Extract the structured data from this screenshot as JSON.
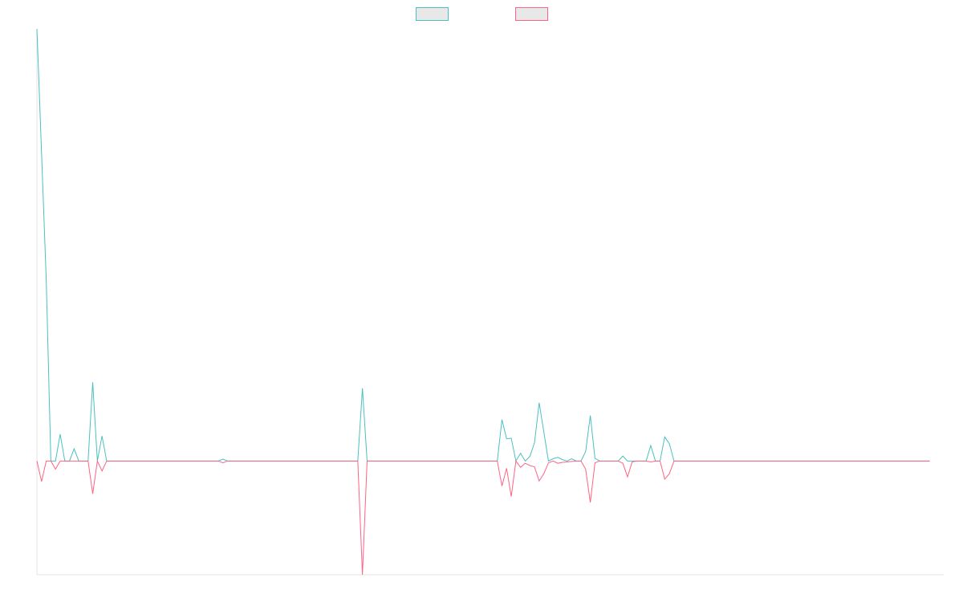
{
  "chart_data": {
    "type": "line",
    "title": "",
    "xlabel": "",
    "ylabel": "",
    "grid": false,
    "legend": "top-center",
    "x_count": 196,
    "ylim": [
      -25,
      95
    ],
    "series": [
      {
        "color": "#4bc0c0",
        "fill": "#e8e8e8",
        "values": [
          95,
          67.7,
          40,
          0,
          0,
          5.9,
          0,
          0,
          2.7,
          0,
          0,
          0,
          17.3,
          0,
          5.5,
          0,
          0,
          0,
          0,
          0,
          0,
          0,
          0,
          0,
          0,
          0,
          0,
          0,
          0,
          0,
          0,
          0,
          0,
          0,
          0,
          0,
          0,
          0,
          0,
          0,
          0.4,
          0,
          0,
          0,
          0,
          0,
          0,
          0,
          0,
          0,
          0,
          0,
          0,
          0,
          0,
          0,
          0,
          0,
          0,
          0,
          0,
          0,
          0,
          0,
          0,
          0,
          0,
          0,
          0,
          0,
          16,
          0,
          0,
          0,
          0,
          0,
          0,
          0,
          0,
          0,
          0,
          0,
          0,
          0,
          0,
          0,
          0,
          0,
          0,
          0,
          0,
          0,
          0,
          0,
          0,
          0,
          0,
          0,
          0,
          0,
          9.1,
          4.9,
          5,
          0,
          1.7,
          0,
          1,
          4,
          12.8,
          6.4,
          0,
          0.5,
          0.8,
          0.3,
          0,
          0.5,
          0,
          0,
          2.1,
          10,
          0.6,
          0,
          0,
          0,
          0,
          0,
          1.1,
          0,
          0,
          0,
          0,
          0,
          3.4,
          0,
          0,
          5.3,
          3.8,
          0,
          0,
          0,
          0,
          0,
          0,
          0,
          0,
          0,
          0,
          0,
          0,
          0,
          0,
          0,
          0,
          0,
          0,
          0,
          0,
          0,
          0,
          0,
          0,
          0,
          0,
          0,
          0,
          0,
          0,
          0,
          0,
          0,
          0,
          0,
          0,
          0,
          0,
          0,
          0,
          0,
          0,
          0,
          0,
          0,
          0,
          0,
          0,
          0,
          0,
          0,
          0,
          0,
          0,
          0,
          0
        ]
      },
      {
        "color": "#ff6384",
        "fill": "#e8e8e8",
        "values": [
          0,
          -4.5,
          0,
          0,
          -1.8,
          0,
          0,
          0,
          0,
          0,
          0,
          0,
          -7.2,
          0,
          -2.2,
          0,
          0,
          0,
          0,
          0,
          0,
          0,
          0,
          0,
          0,
          0,
          0,
          0,
          0,
          0,
          0,
          0,
          0,
          0,
          0,
          0,
          0,
          0,
          0,
          0,
          -0.4,
          0,
          0,
          0,
          0,
          0,
          0,
          0,
          0,
          0,
          0,
          0,
          0,
          0,
          0,
          0,
          0,
          0,
          0,
          0,
          0,
          0,
          0,
          0,
          0,
          0,
          0,
          0,
          0,
          0,
          -25,
          0,
          0,
          0,
          0,
          0,
          0,
          0,
          0,
          0,
          0,
          0,
          0,
          0,
          0,
          0,
          0,
          0,
          0,
          0,
          0,
          0,
          0,
          0,
          0,
          0,
          0,
          0,
          0,
          0,
          -5.5,
          -1.6,
          -7.8,
          0,
          -1.4,
          -0.5,
          -1,
          -1.3,
          -4.4,
          -2.8,
          -0.4,
          0,
          -0.5,
          -0.3,
          -0.2,
          -0.1,
          0,
          0,
          -1.8,
          -9.1,
          -0.4,
          0,
          0,
          0,
          0,
          0,
          -0.5,
          -3.5,
          -0.2,
          0,
          0,
          0,
          -0.2,
          0,
          0,
          -4,
          -2.8,
          0,
          0,
          0,
          0,
          0,
          0,
          0,
          0,
          0,
          0,
          0,
          0,
          0,
          0,
          0,
          0,
          0,
          0,
          0,
          0,
          0,
          0,
          0,
          0,
          0,
          0,
          0,
          0,
          0,
          0,
          0,
          0,
          0,
          0,
          0,
          0,
          0,
          0,
          0,
          0,
          0,
          0,
          0,
          0,
          0,
          0,
          0,
          0,
          0,
          0,
          0,
          0,
          0,
          0,
          0,
          0
        ]
      }
    ]
  }
}
